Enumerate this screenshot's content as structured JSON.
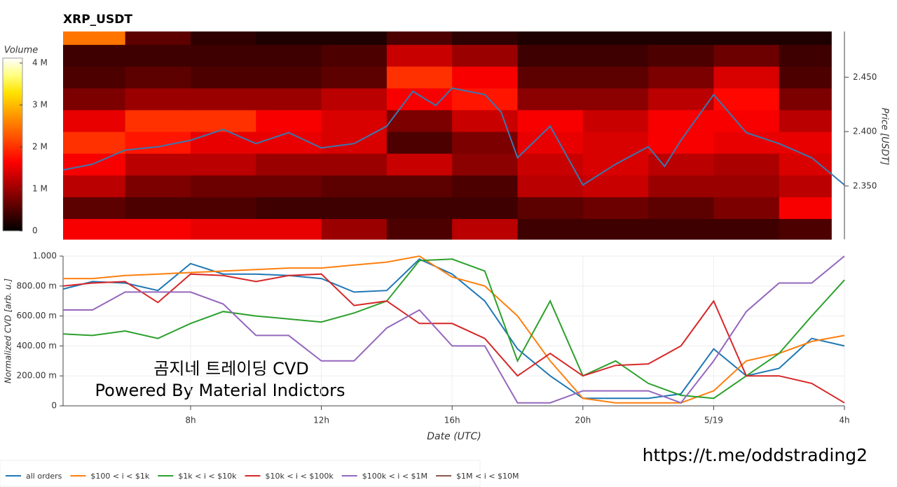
{
  "chart_data": [
    {
      "type": "heatmap",
      "title": "XRP_USDT",
      "ylabel": "Price [USDT]",
      "xlim": [
        4.1,
        28
      ],
      "ylim": [
        2.301,
        2.492
      ],
      "yticks": [
        {
          "value": 2.35,
          "label": "2.350"
        },
        {
          "value": 2.4,
          "label": "2.400"
        },
        {
          "value": 2.45,
          "label": "2.450"
        }
      ],
      "x_bins": [
        4.1,
        6,
        8,
        10,
        12,
        14,
        16,
        18,
        20,
        22,
        24,
        26,
        27.6
      ],
      "y_bins": [
        2.301,
        2.32,
        2.34,
        2.36,
        2.38,
        2.4,
        2.42,
        2.44,
        2.46,
        2.48,
        2.492
      ],
      "values": [
        [
          1600000,
          1600000,
          1500000,
          1500000,
          1000000,
          500000,
          1200000,
          400000,
          400000,
          400000,
          400000,
          500000
        ],
        [
          600000,
          500000,
          500000,
          400000,
          400000,
          400000,
          400000,
          600000,
          700000,
          600000,
          800000,
          1600000
        ],
        [
          1200000,
          800000,
          700000,
          700000,
          600000,
          600000,
          500000,
          1200000,
          1300000,
          1000000,
          1000000,
          1200000
        ],
        [
          1600000,
          1200000,
          1200000,
          1000000,
          1000000,
          1300000,
          900000,
          1300000,
          1400000,
          1200000,
          1100000,
          1400000
        ],
        [
          2000000,
          1800000,
          1500000,
          1500000,
          1400000,
          500000,
          800000,
          1500000,
          1400000,
          1600000,
          1500000,
          1500000
        ],
        [
          1500000,
          2000000,
          2000000,
          1600000,
          1400000,
          800000,
          1300000,
          1600000,
          1300000,
          1600000,
          1600000,
          1200000
        ],
        [
          800000,
          1000000,
          1000000,
          1000000,
          1200000,
          1600000,
          1800000,
          900000,
          900000,
          1200000,
          1700000,
          800000
        ],
        [
          500000,
          600000,
          500000,
          500000,
          600000,
          2000000,
          1600000,
          600000,
          600000,
          800000,
          1400000,
          500000
        ],
        [
          400000,
          400000,
          400000,
          400000,
          500000,
          1300000,
          1000000,
          400000,
          400000,
          500000,
          700000,
          400000
        ],
        [
          2500000,
          600000,
          300000,
          200000,
          200000,
          500000,
          300000,
          200000,
          200000,
          200000,
          200000,
          200000
        ]
      ],
      "colorbar": {
        "label": "Volume",
        "lim": [
          0,
          4117000
        ],
        "ticks": [
          0,
          {
            "value": 1000000,
            "label": "1 M"
          },
          {
            "value": 2000000,
            "label": "2 M"
          },
          {
            "value": 3000000,
            "label": "3 M"
          },
          {
            "value": 4000000,
            "label": "4 M"
          }
        ]
      },
      "line": {
        "color": "#3a78b0",
        "x": [
          4.1,
          5,
          6,
          7,
          8,
          9,
          10,
          11,
          12,
          13,
          14,
          14.8,
          15.5,
          16,
          17,
          17.5,
          18,
          19,
          20,
          21,
          22,
          22.5,
          23,
          24,
          25,
          26,
          27,
          28
        ],
        "values": [
          2.3647,
          2.37,
          2.383,
          2.386,
          2.392,
          2.402,
          2.389,
          2.399,
          2.385,
          2.389,
          2.405,
          2.437,
          2.424,
          2.44,
          2.434,
          2.418,
          2.376,
          2.405,
          2.351,
          2.37,
          2.386,
          2.368,
          2.392,
          2.434,
          2.399,
          2.389,
          2.376,
          2.351
        ]
      }
    },
    {
      "type": "line",
      "xlabel": "Date (UTC)",
      "ylabel": "Normalized CVD [arb. u.]",
      "xlim": [
        4.1,
        28
      ],
      "ylim": [
        0,
        1
      ],
      "xticks": [
        {
          "value": 8,
          "label": "8h"
        },
        {
          "value": 12,
          "label": "12h"
        },
        {
          "value": 16,
          "label": "16h"
        },
        {
          "value": 20,
          "label": "20h"
        },
        {
          "value": 24,
          "label": "5/19"
        },
        {
          "value": 28,
          "label": "4h"
        }
      ],
      "yticks": [
        0,
        {
          "value": 0.2,
          "label": "200.00 m"
        },
        {
          "value": 0.4,
          "label": "400.00 m"
        },
        {
          "value": 0.6,
          "label": "600.00 m"
        },
        {
          "value": 0.8,
          "label": "800.00 m"
        },
        {
          "value": 1,
          "label": "1.000"
        }
      ],
      "grid": true,
      "legend": "bottom",
      "x": [
        4.1,
        5,
        6,
        7,
        8,
        9,
        10,
        11,
        12,
        13,
        14,
        15,
        16,
        17,
        18,
        19,
        20,
        21,
        22,
        23,
        24,
        25,
        26,
        27,
        28
      ],
      "series": [
        {
          "name": "all orders",
          "color": "#1f77b4",
          "values": [
            0.78,
            0.83,
            0.82,
            0.77,
            0.95,
            0.88,
            0.88,
            0.87,
            0.85,
            0.76,
            0.77,
            0.98,
            0.88,
            0.7,
            0.38,
            0.2,
            0.05,
            0.05,
            0.05,
            0.08,
            0.38,
            0.2,
            0.25,
            0.45,
            0.4
          ]
        },
        {
          "name": "$100 < i < $1k",
          "color": "#ff7f0e",
          "values": [
            0.85,
            0.85,
            0.87,
            0.88,
            0.89,
            0.9,
            0.91,
            0.92,
            0.92,
            0.94,
            0.96,
            1.0,
            0.86,
            0.8,
            0.6,
            0.3,
            0.05,
            0.02,
            0.02,
            0.02,
            0.1,
            0.3,
            0.35,
            0.43,
            0.47
          ]
        },
        {
          "name": "$1k < i < $10k",
          "color": "#2ca02c",
          "values": [
            0.48,
            0.47,
            0.5,
            0.45,
            0.55,
            0.63,
            0.6,
            0.58,
            0.56,
            0.62,
            0.7,
            0.97,
            0.98,
            0.9,
            0.3,
            0.7,
            0.2,
            0.3,
            0.15,
            0.07,
            0.05,
            0.2,
            0.35,
            0.6,
            0.84
          ]
        },
        {
          "name": "$10k < i < $100k",
          "color": "#d62728",
          "values": [
            0.8,
            0.82,
            0.83,
            0.69,
            0.88,
            0.87,
            0.83,
            0.87,
            0.88,
            0.67,
            0.7,
            0.55,
            0.55,
            0.45,
            0.2,
            0.35,
            0.2,
            0.27,
            0.28,
            0.4,
            0.7,
            0.2,
            0.2,
            0.15,
            0.02
          ]
        },
        {
          "name": "$100k < i < $1M",
          "color": "#9467bd",
          "values": [
            0.64,
            0.64,
            0.76,
            0.76,
            0.76,
            0.68,
            0.47,
            0.47,
            0.3,
            0.3,
            0.52,
            0.64,
            0.4,
            0.4,
            0.02,
            0.02,
            0.1,
            0.1,
            0.1,
            0.02,
            0.3,
            0.63,
            0.82,
            0.82,
            1.0
          ]
        },
        {
          "name": "$1M < i < $10M",
          "color": "#8c564b",
          "values": [
            null,
            null,
            null,
            null,
            null,
            null,
            null,
            null,
            null,
            null,
            null,
            null,
            null,
            null,
            null,
            null,
            null,
            null,
            null,
            null,
            null,
            null,
            null,
            null,
            null
          ]
        }
      ]
    }
  ],
  "annotations": [
    "곰지네 트레이딩 CVD",
    "Powered By Material Indictors",
    "https://t.me/oddstrading2"
  ]
}
